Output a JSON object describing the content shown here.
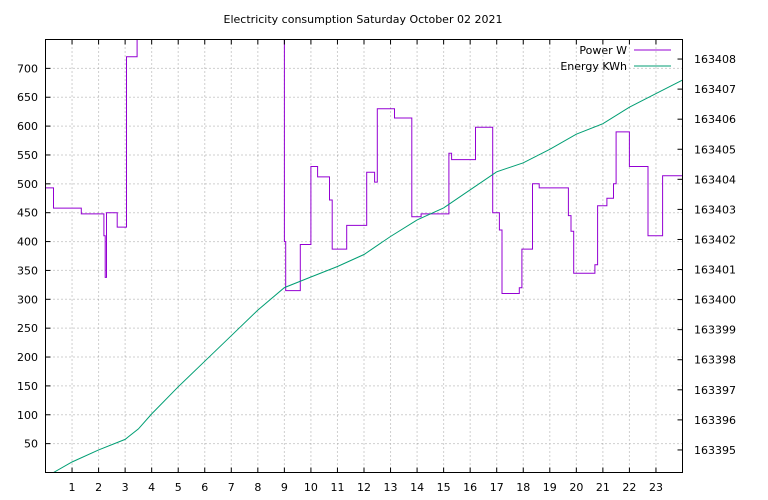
{
  "chart_data": {
    "type": "line",
    "title": "Electricity consumption Saturday October 02 2021",
    "grid": true,
    "legend_placement": "top-right",
    "x_axis": {
      "range": [
        0,
        24
      ],
      "ticks": [
        1,
        2,
        3,
        4,
        5,
        6,
        7,
        8,
        9,
        10,
        11,
        12,
        13,
        14,
        15,
        16,
        17,
        18,
        19,
        20,
        21,
        22,
        23
      ]
    },
    "y_axis_left": {
      "range": [
        0,
        750
      ],
      "ticks": [
        50,
        100,
        150,
        200,
        250,
        300,
        350,
        400,
        450,
        500,
        550,
        600,
        650,
        700
      ]
    },
    "y_axis_right": {
      "range": [
        163394.25,
        163408.65
      ],
      "ticks": [
        163395,
        163396,
        163397,
        163398,
        163399,
        163400,
        163401,
        163402,
        163403,
        163404,
        163405,
        163406,
        163407,
        163408
      ]
    },
    "series": [
      {
        "name": "Power W",
        "axis": "left",
        "color": "#9400d3",
        "step": true,
        "points": [
          [
            0,
            493
          ],
          [
            0.3,
            458
          ],
          [
            1.35,
            448
          ],
          [
            2.2,
            410
          ],
          [
            2.25,
            338
          ],
          [
            2.3,
            450
          ],
          [
            2.7,
            425
          ],
          [
            3.05,
            720
          ],
          [
            3.45,
            750
          ],
          [
            8.95,
            750
          ],
          [
            9.0,
            400
          ],
          [
            9.05,
            315
          ],
          [
            9.6,
            395
          ],
          [
            10.0,
            530
          ],
          [
            10.25,
            512
          ],
          [
            10.7,
            472
          ],
          [
            10.8,
            387
          ],
          [
            11.35,
            428
          ],
          [
            12.1,
            520
          ],
          [
            12.4,
            503
          ],
          [
            12.5,
            630
          ],
          [
            13.15,
            614
          ],
          [
            13.8,
            443
          ],
          [
            14.15,
            448
          ],
          [
            15.2,
            553
          ],
          [
            15.3,
            542
          ],
          [
            16.2,
            598
          ],
          [
            16.85,
            450
          ],
          [
            17.1,
            420
          ],
          [
            17.2,
            310
          ],
          [
            17.85,
            320
          ],
          [
            17.95,
            387
          ],
          [
            18.35,
            500
          ],
          [
            18.6,
            493
          ],
          [
            19.7,
            445
          ],
          [
            19.8,
            418
          ],
          [
            19.9,
            345
          ],
          [
            20.7,
            360
          ],
          [
            20.8,
            462
          ],
          [
            21.15,
            475
          ],
          [
            21.4,
            500
          ],
          [
            21.5,
            590
          ],
          [
            21.9,
            590
          ],
          [
            22.0,
            530
          ],
          [
            22.7,
            410
          ],
          [
            23.25,
            514
          ],
          [
            24,
            514
          ]
        ]
      },
      {
        "name": "Energy KWh",
        "axis": "right",
        "color": "#009e73",
        "step": false,
        "points": [
          [
            0.3,
            163394.25
          ],
          [
            1.0,
            163394.6
          ],
          [
            2.0,
            163395.0
          ],
          [
            3.0,
            163395.35
          ],
          [
            3.5,
            163395.7
          ],
          [
            4.0,
            163396.2
          ],
          [
            5.0,
            163397.1
          ],
          [
            6.0,
            163397.95
          ],
          [
            7.0,
            163398.8
          ],
          [
            8.0,
            163399.65
          ],
          [
            9.0,
            163400.4
          ],
          [
            10.0,
            163400.75
          ],
          [
            11.0,
            163401.1
          ],
          [
            12.0,
            163401.5
          ],
          [
            13.0,
            163402.1
          ],
          [
            14.0,
            163402.65
          ],
          [
            15.0,
            163403.05
          ],
          [
            16.0,
            163403.65
          ],
          [
            17.0,
            163404.25
          ],
          [
            18.0,
            163404.55
          ],
          [
            19.0,
            163405.0
          ],
          [
            20.0,
            163405.5
          ],
          [
            21.0,
            163405.85
          ],
          [
            22.0,
            163406.4
          ],
          [
            23.0,
            163406.85
          ],
          [
            24.0,
            163407.3
          ]
        ]
      }
    ]
  }
}
